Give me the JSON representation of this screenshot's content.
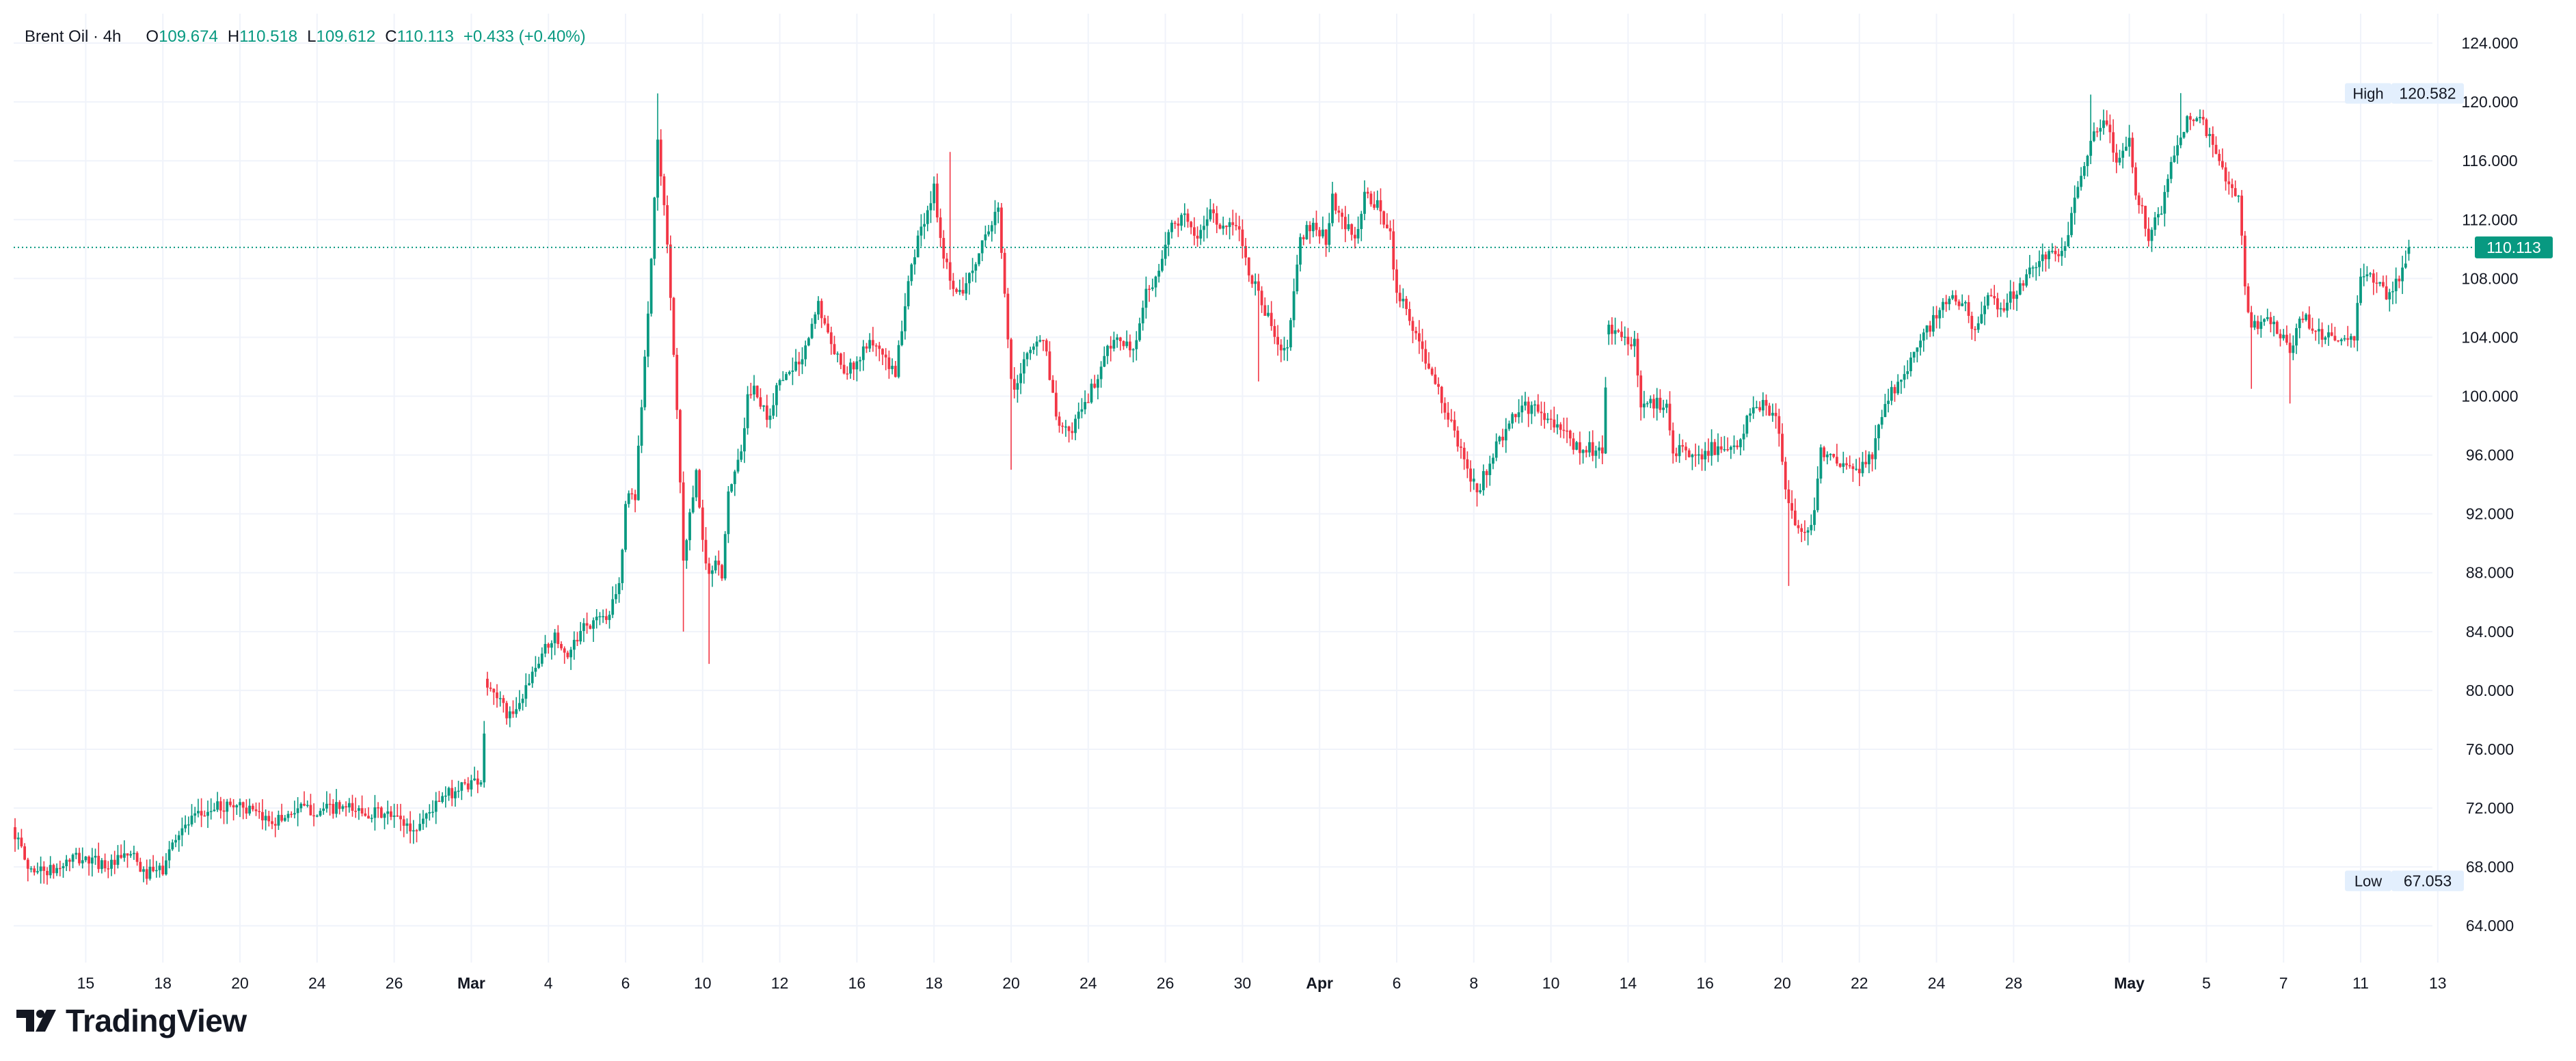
{
  "header": {
    "symbol": "Brent Oil · 4h",
    "o_label": "O",
    "o_value": "109.674",
    "h_label": "H",
    "h_value": "110.518",
    "l_label": "L",
    "l_value": "109.612",
    "c_label": "C",
    "c_value": "110.113",
    "change": "+0.433 (+0.40%)"
  },
  "brand": {
    "name": "TradingView"
  },
  "colors": {
    "up": "#089981",
    "down": "#F23645",
    "grid": "#F0F3FA",
    "text": "#131722",
    "tag_bg": "#E3EFFD"
  },
  "chart_data": {
    "type": "candlestick",
    "interval": "4h",
    "ylim": [
      61.5,
      126.0
    ],
    "grid": true,
    "price_axis": "right",
    "y_ticks": [
      "64.000",
      "68.000",
      "72.000",
      "76.000",
      "80.000",
      "84.000",
      "88.000",
      "92.000",
      "96.000",
      "100.000",
      "104.000",
      "108.000",
      "112.000",
      "116.000",
      "120.000",
      "124.000"
    ],
    "x_ticks": [
      {
        "label": "15",
        "bar": 22
      },
      {
        "label": "18",
        "bar": 46
      },
      {
        "label": "20",
        "bar": 70
      },
      {
        "label": "24",
        "bar": 94
      },
      {
        "label": "26",
        "bar": 118
      },
      {
        "label": "Mar",
        "bar": 142,
        "bold": true
      },
      {
        "label": "4",
        "bar": 166
      },
      {
        "label": "6",
        "bar": 190
      },
      {
        "label": "10",
        "bar": 214
      },
      {
        "label": "12",
        "bar": 238
      },
      {
        "label": "16",
        "bar": 262
      },
      {
        "label": "18",
        "bar": 286
      },
      {
        "label": "20",
        "bar": 310
      },
      {
        "label": "24",
        "bar": 334
      },
      {
        "label": "26",
        "bar": 358
      },
      {
        "label": "30",
        "bar": 382
      },
      {
        "label": "Apr",
        "bar": 406,
        "bold": true
      },
      {
        "label": "6",
        "bar": 430
      },
      {
        "label": "8",
        "bar": 454
      },
      {
        "label": "10",
        "bar": 478
      },
      {
        "label": "14",
        "bar": 502
      },
      {
        "label": "16",
        "bar": 526
      },
      {
        "label": "20",
        "bar": 550
      },
      {
        "label": "22",
        "bar": 574
      },
      {
        "label": "24",
        "bar": 598
      },
      {
        "label": "28",
        "bar": 622
      },
      {
        "label": "May",
        "bar": 658,
        "bold": true
      },
      {
        "label": "5",
        "bar": 682
      },
      {
        "label": "7",
        "bar": 706
      },
      {
        "label": "11",
        "bar": 730
      },
      {
        "label": "13",
        "bar": 754
      }
    ],
    "current_price": {
      "value": 110.113,
      "label": "110.113"
    },
    "high_marker": {
      "label": "High",
      "value": 120.582,
      "text": "120.582"
    },
    "low_marker": {
      "label": "Low",
      "value": 67.053,
      "text": "67.053"
    },
    "gaps": [
      147,
      455,
      496
    ],
    "keypoints": [
      [
        0,
        70.3
      ],
      [
        4,
        67.9
      ],
      [
        12,
        67.7
      ],
      [
        18,
        68.6
      ],
      [
        24,
        68.4
      ],
      [
        30,
        68.1
      ],
      [
        36,
        68.9
      ],
      [
        40,
        67.5
      ],
      [
        46,
        67.8
      ],
      [
        50,
        70.2
      ],
      [
        56,
        71.3
      ],
      [
        62,
        72.0
      ],
      [
        70,
        72.3
      ],
      [
        76,
        71.3
      ],
      [
        82,
        71.2
      ],
      [
        88,
        72.0
      ],
      [
        94,
        71.8
      ],
      [
        100,
        72.0
      ],
      [
        108,
        71.8
      ],
      [
        114,
        71.6
      ],
      [
        120,
        71.2
      ],
      [
        124,
        70.4
      ],
      [
        128,
        71.6
      ],
      [
        134,
        72.8
      ],
      [
        140,
        73.6
      ],
      [
        145,
        74.0
      ],
      [
        147,
        80.4
      ],
      [
        150,
        79.6
      ],
      [
        153,
        78.3
      ],
      [
        156,
        78.6
      ],
      [
        160,
        80.5
      ],
      [
        164,
        82.5
      ],
      [
        168,
        84.0
      ],
      [
        172,
        82.3
      ],
      [
        176,
        84.0
      ],
      [
        180,
        84.5
      ],
      [
        184,
        85.0
      ],
      [
        188,
        87.0
      ],
      [
        190,
        93.0
      ],
      [
        193,
        93.3
      ],
      [
        196,
        102.5
      ],
      [
        198,
        109.5
      ],
      [
        200,
        117.3
      ],
      [
        202,
        113.0
      ],
      [
        204,
        107.0
      ],
      [
        206,
        99.5
      ],
      [
        208,
        89.0
      ],
      [
        210,
        92.0
      ],
      [
        212,
        95.0
      ],
      [
        214,
        90.0
      ],
      [
        216,
        87.5
      ],
      [
        218,
        89.0
      ],
      [
        220,
        87.5
      ],
      [
        222,
        93.5
      ],
      [
        224,
        94.5
      ],
      [
        226,
        96.0
      ],
      [
        228,
        100.0
      ],
      [
        230,
        100.5
      ],
      [
        234,
        98.5
      ],
      [
        238,
        101.0
      ],
      [
        242,
        102.0
      ],
      [
        246,
        103.0
      ],
      [
        250,
        106.5
      ],
      [
        254,
        103.5
      ],
      [
        258,
        101.5
      ],
      [
        262,
        102.5
      ],
      [
        266,
        104.0
      ],
      [
        270,
        103.0
      ],
      [
        274,
        101.5
      ],
      [
        278,
        108.0
      ],
      [
        282,
        111.5
      ],
      [
        286,
        114.0
      ],
      [
        288,
        110.5
      ],
      [
        292,
        107.0
      ],
      [
        296,
        107.5
      ],
      [
        300,
        110.0
      ],
      [
        304,
        112.0
      ],
      [
        306,
        112.8
      ],
      [
        310,
        101.0
      ],
      [
        312,
        100.5
      ],
      [
        314,
        102.5
      ],
      [
        316,
        103.0
      ],
      [
        320,
        104.0
      ],
      [
        324,
        98.5
      ],
      [
        328,
        97.5
      ],
      [
        332,
        99.0
      ],
      [
        336,
        101.0
      ],
      [
        340,
        103.0
      ],
      [
        344,
        104.0
      ],
      [
        348,
        103.0
      ],
      [
        352,
        107.0
      ],
      [
        356,
        108.5
      ],
      [
        360,
        111.5
      ],
      [
        364,
        112.0
      ],
      [
        368,
        111.0
      ],
      [
        372,
        112.5
      ],
      [
        376,
        111.5
      ],
      [
        380,
        112.0
      ],
      [
        384,
        108.5
      ],
      [
        388,
        106.5
      ],
      [
        392,
        104.0
      ],
      [
        396,
        103.0
      ],
      [
        400,
        110.5
      ],
      [
        404,
        112.0
      ],
      [
        408,
        110.5
      ],
      [
        410,
        113.5
      ],
      [
        414,
        111.5
      ],
      [
        418,
        111.0
      ],
      [
        420,
        113.5
      ],
      [
        424,
        113.0
      ],
      [
        428,
        111.0
      ],
      [
        430,
        107.0
      ],
      [
        432,
        106.5
      ],
      [
        455,
        93.5
      ],
      [
        458,
        95.0
      ],
      [
        462,
        97.0
      ],
      [
        466,
        98.5
      ],
      [
        470,
        99.3
      ],
      [
        474,
        99.0
      ],
      [
        478,
        98.0
      ],
      [
        482,
        97.5
      ],
      [
        486,
        96.5
      ],
      [
        490,
        96.5
      ],
      [
        494,
        96.0
      ],
      [
        496,
        104.5
      ],
      [
        500,
        104.0
      ],
      [
        504,
        103.5
      ],
      [
        506,
        99.5
      ],
      [
        510,
        99.5
      ],
      [
        514,
        99.5
      ],
      [
        516,
        96.5
      ],
      [
        520,
        96.0
      ],
      [
        524,
        96.0
      ],
      [
        528,
        96.5
      ],
      [
        532,
        96.0
      ],
      [
        536,
        96.5
      ],
      [
        540,
        99.0
      ],
      [
        544,
        99.3
      ],
      [
        548,
        98.5
      ],
      [
        552,
        92.5
      ],
      [
        556,
        90.5
      ],
      [
        560,
        92.0
      ],
      [
        562,
        96.5
      ],
      [
        566,
        95.5
      ],
      [
        570,
        95.0
      ],
      [
        574,
        95.0
      ],
      [
        578,
        96.0
      ],
      [
        582,
        99.5
      ],
      [
        586,
        101.0
      ],
      [
        590,
        102.5
      ],
      [
        594,
        104.0
      ],
      [
        598,
        105.5
      ],
      [
        602,
        106.5
      ],
      [
        606,
        106.5
      ],
      [
        610,
        104.5
      ],
      [
        614,
        106.5
      ],
      [
        618,
        106.0
      ],
      [
        622,
        107.0
      ],
      [
        626,
        108.0
      ],
      [
        630,
        109.5
      ],
      [
        634,
        109.5
      ],
      [
        638,
        110.0
      ],
      [
        642,
        114.5
      ],
      [
        646,
        117.5
      ],
      [
        650,
        119.0
      ],
      [
        654,
        116.0
      ],
      [
        658,
        117.5
      ],
      [
        660,
        114.0
      ],
      [
        664,
        111.0
      ],
      [
        668,
        112.5
      ],
      [
        672,
        116.5
      ],
      [
        676,
        119.0
      ],
      [
        680,
        119.0
      ],
      [
        684,
        117.0
      ],
      [
        688,
        114.5
      ],
      [
        692,
        113.5
      ],
      [
        694,
        107.5
      ],
      [
        696,
        104.5
      ],
      [
        700,
        105.5
      ],
      [
        704,
        104.5
      ],
      [
        708,
        103.0
      ],
      [
        712,
        105.5
      ],
      [
        716,
        104.5
      ],
      [
        720,
        104.0
      ],
      [
        724,
        104.0
      ],
      [
        728,
        104.0
      ],
      [
        730,
        108.0
      ],
      [
        734,
        108.0
      ],
      [
        738,
        107.0
      ],
      [
        742,
        108.0
      ],
      [
        745,
        110.11
      ]
    ],
    "wicks": [
      {
        "bar": 200,
        "high": 120.58
      },
      {
        "bar": 208,
        "low": 84.0
      },
      {
        "bar": 216,
        "low": 81.8
      },
      {
        "bar": 250,
        "high": 106.8
      },
      {
        "bar": 291,
        "high": 116.6
      },
      {
        "bar": 310,
        "low": 95.0
      },
      {
        "bar": 387,
        "low": 101.0
      },
      {
        "bar": 455,
        "low": 92.5
      },
      {
        "bar": 552,
        "low": 87.1
      },
      {
        "bar": 646,
        "high": 120.5
      },
      {
        "bar": 674,
        "high": 120.6
      },
      {
        "bar": 696,
        "low": 100.5
      },
      {
        "bar": 708,
        "low": 99.5
      }
    ],
    "rand_seed": 1337
  }
}
